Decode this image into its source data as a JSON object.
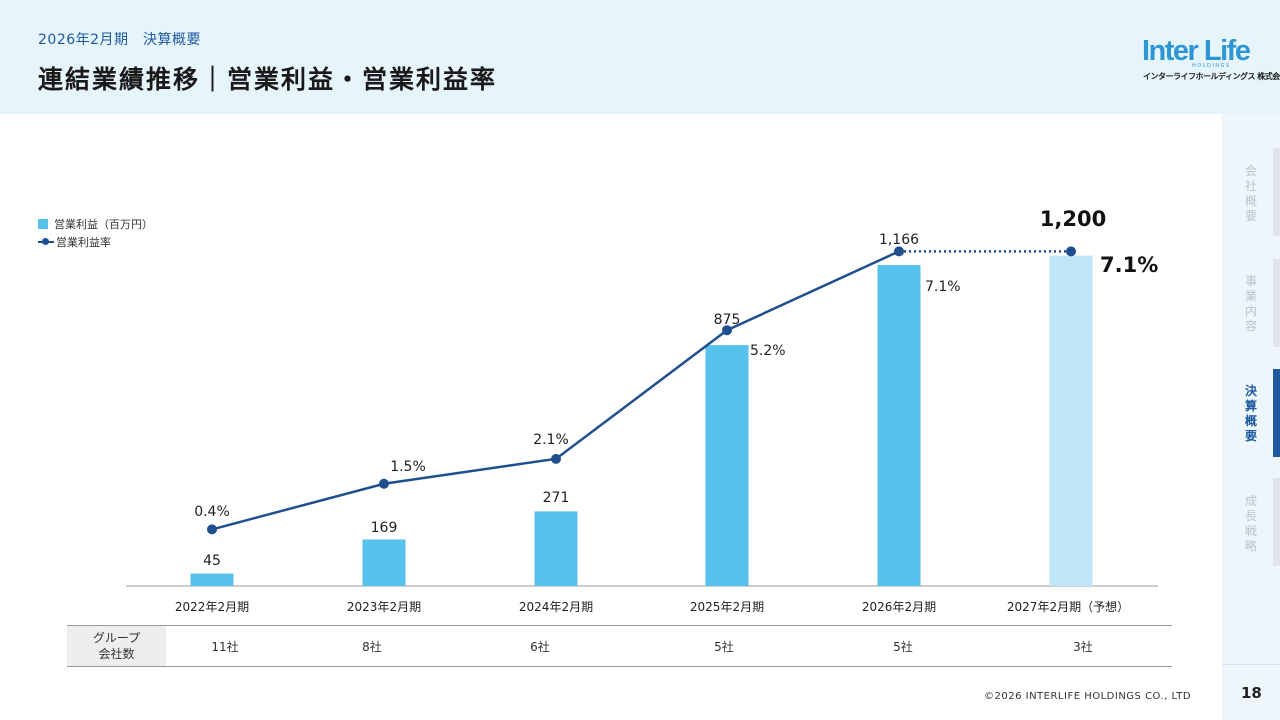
{
  "header": {
    "subtitle": "2026年2月期　決算概要",
    "title": "連結業績推移｜営業利益・営業利益率",
    "logo_main": "Inter Life",
    "logo_sub": "HOLDINGS",
    "logo_jp": "インターライフホールディングス 株式会社"
  },
  "sidebar": {
    "items": [
      {
        "label": "会社概要",
        "active": false
      },
      {
        "label": "事業内容",
        "active": false
      },
      {
        "label": "決算概要",
        "active": true
      },
      {
        "label": "成長戦略",
        "active": false
      }
    ]
  },
  "legend": {
    "bar_label": "営業利益（百万円）",
    "line_label": "営業利益率"
  },
  "chart_data": {
    "type": "bar",
    "categories": [
      "2022年2月期",
      "2023年2月期",
      "2024年2月期",
      "2025年2月期",
      "2026年2月期",
      "2027年2月期（予想）"
    ],
    "series": [
      {
        "name": "営業利益（百万円）",
        "type": "bar",
        "values": [
          45,
          169,
          271,
          875,
          1166,
          1200
        ],
        "labels": [
          "45",
          "169",
          "271",
          "875",
          "1,166",
          "1,200"
        ]
      },
      {
        "name": "営業利益率",
        "type": "line",
        "values": [
          0.4,
          1.5,
          2.1,
          5.2,
          7.1,
          7.1
        ],
        "labels": [
          "0.4%",
          "1.5%",
          "2.1%",
          "5.2%",
          "7.1%",
          "7.1%"
        ]
      }
    ],
    "forecast_index": 5,
    "colors": {
      "bar": "#56c1ea",
      "bar_forecast": "#bfe6f8",
      "line": "#1f4f8f"
    }
  },
  "table": {
    "header_line1": "グループ",
    "header_line2": "会社数",
    "values": [
      "11社",
      "8社",
      "6社",
      "5社",
      "5社",
      "3社"
    ]
  },
  "footer": {
    "copyright": "©2026 INTERLIFE HOLDINGS CO., LTD",
    "page": "18"
  }
}
